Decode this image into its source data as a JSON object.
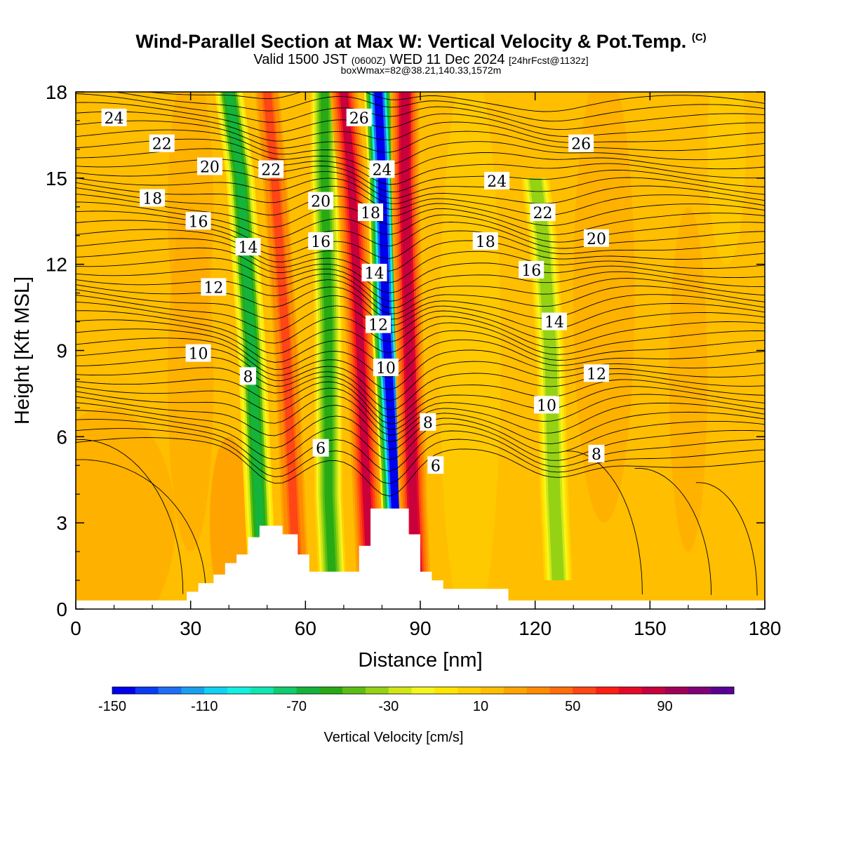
{
  "header": {
    "title_main": "Wind-Parallel Section at Max W: Vertical Velocity & Pot.Temp.",
    "title_mark": "(C)",
    "valid_prefix": "Valid 1500 JST",
    "valid_utc": "(0600Z)",
    "valid_date": "WED 11 Dec 2024",
    "valid_fcst": "[24hrFcst@1132z]",
    "box_info": "boxWmax=82@38.21,140.33,1572m"
  },
  "colorbar": {
    "label": "Vertical Velocity [cm/s]",
    "tick_labels": [
      "-150",
      "-110",
      "-70",
      "-30",
      "10",
      "50",
      "90"
    ],
    "colors": [
      "#0000ee",
      "#0a3cf5",
      "#1f6ef5",
      "#18a0f0",
      "#10d2f5",
      "#10f0e0",
      "#10e6b4",
      "#10cd6e",
      "#14b43c",
      "#28aa14",
      "#5abe14",
      "#96d214",
      "#d2e614",
      "#f5f51e",
      "#ffe600",
      "#ffd200",
      "#ffbe00",
      "#ffa500",
      "#ff8c00",
      "#ff6e0a",
      "#ff4614",
      "#ff1e14",
      "#e60a28",
      "#c8003c",
      "#a0005a",
      "#820078",
      "#5a0096"
    ]
  },
  "chart_data": {
    "type": "heatmap",
    "title": "Wind-Parallel Section at Max W: Vertical Velocity & Pot.Temp.",
    "xlabel": "Distance [nm]",
    "ylabel": "Height [Kft MSL]",
    "xlim": [
      0,
      180
    ],
    "ylim": [
      0,
      18
    ],
    "x_ticks": [
      0,
      30,
      60,
      90,
      120,
      150,
      180
    ],
    "y_ticks": [
      0,
      3,
      6,
      9,
      12,
      15,
      18
    ],
    "fill_variable": "Vertical Velocity [cm/s]",
    "fill_range": [
      -150,
      120
    ],
    "updraft_downdraft_bands": [
      {
        "name": "downdraft",
        "w_peak": -70,
        "path": [
          [
            48,
            3
          ],
          [
            46,
            9
          ],
          [
            43,
            15
          ],
          [
            40,
            18
          ]
        ]
      },
      {
        "name": "updraft",
        "w_peak": 50,
        "path": [
          [
            57,
            3
          ],
          [
            55,
            9
          ],
          [
            52,
            15
          ],
          [
            50,
            18
          ]
        ]
      },
      {
        "name": "downdraft",
        "w_peak": -60,
        "path": [
          [
            66,
            4
          ],
          [
            66,
            10
          ],
          [
            65,
            15
          ],
          [
            65,
            18
          ]
        ]
      },
      {
        "name": "updraft",
        "w_peak": 80,
        "path": [
          [
            76,
            4
          ],
          [
            74,
            10
          ],
          [
            72,
            15
          ],
          [
            70,
            18
          ]
        ]
      },
      {
        "name": "downdraft",
        "w_peak": -150,
        "path": [
          [
            83,
            5
          ],
          [
            81,
            10
          ],
          [
            80,
            15
          ],
          [
            79,
            18
          ]
        ]
      },
      {
        "name": "updraft",
        "w_peak": 82,
        "path": [
          [
            88,
            4
          ],
          [
            87,
            10
          ],
          [
            86,
            15
          ],
          [
            86,
            18
          ]
        ]
      },
      {
        "name": "downdraft",
        "w_peak": -40,
        "path": [
          [
            125,
            4
          ],
          [
            124,
            9
          ],
          [
            122,
            13
          ],
          [
            120,
            15
          ]
        ]
      }
    ],
    "terrain": [
      [
        0,
        0.3
      ],
      [
        29,
        0.3
      ],
      [
        29,
        0.6
      ],
      [
        32,
        0.6
      ],
      [
        32,
        0.9
      ],
      [
        36,
        0.9
      ],
      [
        36,
        1.2
      ],
      [
        39,
        1.2
      ],
      [
        39,
        1.6
      ],
      [
        42,
        1.6
      ],
      [
        42,
        1.9
      ],
      [
        45,
        1.9
      ],
      [
        45,
        2.5
      ],
      [
        48,
        2.5
      ],
      [
        48,
        2.9
      ],
      [
        54,
        2.9
      ],
      [
        54,
        2.6
      ],
      [
        58,
        2.6
      ],
      [
        58,
        1.9
      ],
      [
        61,
        1.9
      ],
      [
        61,
        1.3
      ],
      [
        74,
        1.3
      ],
      [
        74,
        2.2
      ],
      [
        77,
        2.2
      ],
      [
        77,
        3.5
      ],
      [
        87,
        3.5
      ],
      [
        87,
        2.6
      ],
      [
        90,
        2.6
      ],
      [
        90,
        1.3
      ],
      [
        93,
        1.3
      ],
      [
        93,
        1.0
      ],
      [
        96,
        1.0
      ],
      [
        96,
        0.7
      ],
      [
        105,
        0.7
      ],
      [
        113,
        0.7
      ],
      [
        113,
        0.3
      ],
      [
        180,
        0.3
      ]
    ],
    "contour_variable": "Potential Temperature",
    "contour_labels": [
      {
        "value": 24,
        "x": 10,
        "y": 17.1
      },
      {
        "value": 22,
        "x": 22.5,
        "y": 16.2
      },
      {
        "value": 20,
        "x": 35,
        "y": 15.4
      },
      {
        "value": 18,
        "x": 20,
        "y": 14.3
      },
      {
        "value": 16,
        "x": 32,
        "y": 13.5
      },
      {
        "value": 14,
        "x": 45,
        "y": 12.6
      },
      {
        "value": 12,
        "x": 36,
        "y": 11.2
      },
      {
        "value": 10,
        "x": 32,
        "y": 8.9
      },
      {
        "value": 8,
        "x": 45,
        "y": 8.1
      },
      {
        "value": 6,
        "x": 64,
        "y": 5.6
      },
      {
        "value": 22,
        "x": 51,
        "y": 15.3
      },
      {
        "value": 20,
        "x": 64,
        "y": 14.2
      },
      {
        "value": 16,
        "x": 64,
        "y": 12.8
      },
      {
        "value": 26,
        "x": 74,
        "y": 17.1
      },
      {
        "value": 24,
        "x": 80,
        "y": 15.3
      },
      {
        "value": 18,
        "x": 77,
        "y": 13.8
      },
      {
        "value": 14,
        "x": 78,
        "y": 11.7
      },
      {
        "value": 12,
        "x": 79,
        "y": 9.9
      },
      {
        "value": 10,
        "x": 81,
        "y": 8.4
      },
      {
        "value": 8,
        "x": 92,
        "y": 6.5
      },
      {
        "value": 6,
        "x": 94,
        "y": 5.0
      },
      {
        "value": 24,
        "x": 110,
        "y": 14.9
      },
      {
        "value": 18,
        "x": 107,
        "y": 12.8
      },
      {
        "value": 26,
        "x": 132,
        "y": 16.2
      },
      {
        "value": 22,
        "x": 122,
        "y": 13.8
      },
      {
        "value": 20,
        "x": 136,
        "y": 12.9
      },
      {
        "value": 16,
        "x": 119,
        "y": 11.8
      },
      {
        "value": 14,
        "x": 125,
        "y": 10.0
      },
      {
        "value": 12,
        "x": 136,
        "y": 8.2
      },
      {
        "value": 10,
        "x": 123,
        "y": 7.1
      },
      {
        "value": 8,
        "x": 136,
        "y": 5.4
      }
    ]
  }
}
